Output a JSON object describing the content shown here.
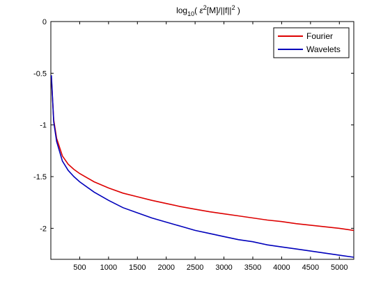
{
  "chart_data": {
    "type": "line",
    "title_parts": {
      "log": "log",
      "base": "10",
      "open": "( ",
      "eps": "ε",
      "sq1": "2",
      "mid": "[M]/||f||",
      "sq2": "2",
      "close": " )"
    },
    "xlim": [
      0,
      5250
    ],
    "ylim": [
      -2.3,
      0
    ],
    "x_ticks": [
      500,
      1000,
      1500,
      2000,
      2500,
      3000,
      3500,
      4000,
      4500,
      5000
    ],
    "y_ticks": [
      0,
      -0.5,
      -1,
      -1.5,
      -2
    ],
    "legend_position": "top-right",
    "grid": false,
    "series": [
      {
        "name": "Fourier",
        "color": "#dd0000",
        "x": [
          10,
          50,
          100,
          200,
          300,
          400,
          500,
          750,
          1000,
          1250,
          1500,
          1750,
          2000,
          2250,
          2500,
          2750,
          3000,
          3250,
          3500,
          3750,
          4000,
          4250,
          4500,
          4750,
          5000,
          5250
        ],
        "y": [
          -0.55,
          -0.95,
          -1.13,
          -1.3,
          -1.38,
          -1.43,
          -1.47,
          -1.55,
          -1.61,
          -1.66,
          -1.695,
          -1.73,
          -1.76,
          -1.79,
          -1.815,
          -1.84,
          -1.86,
          -1.88,
          -1.9,
          -1.92,
          -1.935,
          -1.955,
          -1.97,
          -1.985,
          -2.0,
          -2.02
        ]
      },
      {
        "name": "Wavelets",
        "color": "#0000bb",
        "x": [
          10,
          50,
          100,
          200,
          300,
          400,
          500,
          750,
          1000,
          1250,
          1500,
          1750,
          2000,
          2250,
          2500,
          2750,
          3000,
          3250,
          3500,
          3750,
          4000,
          4250,
          4500,
          4750,
          5000,
          5250
        ],
        "y": [
          -0.52,
          -0.97,
          -1.16,
          -1.35,
          -1.44,
          -1.5,
          -1.55,
          -1.65,
          -1.73,
          -1.8,
          -1.85,
          -1.9,
          -1.94,
          -1.98,
          -2.02,
          -2.05,
          -2.08,
          -2.11,
          -2.13,
          -2.16,
          -2.18,
          -2.2,
          -2.22,
          -2.24,
          -2.26,
          -2.28
        ]
      }
    ]
  }
}
